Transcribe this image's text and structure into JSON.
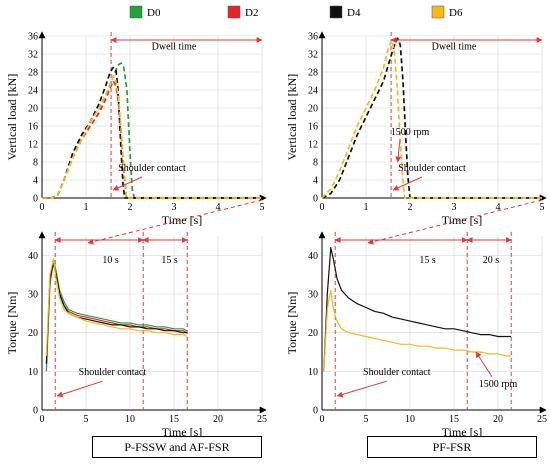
{
  "legend": [
    {
      "label": "D0",
      "color": "#1fa23a"
    },
    {
      "label": "D2",
      "color": "#e8222a"
    },
    {
      "label": "D4",
      "color": "#111111"
    },
    {
      "label": "D6",
      "color": "#f5b914"
    }
  ],
  "panel_titles": [
    "P-FSSW and AF-FSR",
    "PF-FSR"
  ],
  "chart_data": [
    {
      "type": "line",
      "position": "top-left",
      "xlabel": "Time [s]",
      "ylabel": "Vertical load [kN]",
      "xlim": [
        0,
        5
      ],
      "ylim": [
        0,
        36
      ],
      "xticks": [
        0,
        1,
        2,
        3,
        4,
        5
      ],
      "yticks": [
        0,
        4,
        8,
        12,
        16,
        20,
        24,
        28,
        32,
        36
      ],
      "grid": true,
      "series": [
        {
          "name": "D0",
          "color": "#1fa23a",
          "dash": true,
          "x": [
            0,
            0.2,
            0.35,
            0.5,
            0.7,
            0.9,
            1.1,
            1.3,
            1.5,
            1.62,
            1.72,
            1.8,
            1.86,
            1.93,
            2.0,
            2.05,
            2.1,
            5
          ],
          "y": [
            0,
            0,
            0.5,
            4,
            9,
            13,
            17,
            20,
            24,
            27,
            29.5,
            30,
            29,
            24,
            10,
            2,
            0,
            0
          ]
        },
        {
          "name": "D2",
          "color": "#e8222a",
          "dash": true,
          "x": [
            0,
            0.2,
            0.35,
            0.5,
            0.7,
            0.9,
            1.1,
            1.3,
            1.45,
            1.55,
            1.62,
            1.68,
            1.74,
            1.8,
            1.86,
            1.92,
            5
          ],
          "y": [
            0,
            0,
            0.5,
            4,
            9,
            13,
            16,
            19,
            22,
            24.5,
            26,
            25,
            21,
            14,
            6,
            0,
            0
          ]
        },
        {
          "name": "D4",
          "color": "#111111",
          "dash": true,
          "x": [
            0,
            0.2,
            0.35,
            0.5,
            0.7,
            0.9,
            1.1,
            1.3,
            1.45,
            1.55,
            1.62,
            1.68,
            1.72,
            1.76,
            1.8,
            1.84,
            1.88,
            5
          ],
          "y": [
            0,
            0,
            0.5,
            4,
            10,
            14,
            17,
            21,
            25,
            28,
            29,
            28.5,
            25,
            18,
            10,
            3,
            0,
            0
          ]
        },
        {
          "name": "D6",
          "color": "#f5b914",
          "dash": true,
          "x": [
            0,
            0.2,
            0.35,
            0.5,
            0.7,
            0.9,
            1.1,
            1.3,
            1.45,
            1.55,
            1.62,
            1.68,
            1.74,
            1.8,
            1.86,
            1.92,
            5
          ],
          "y": [
            0,
            0,
            0.5,
            4,
            9,
            13,
            17,
            20,
            23,
            25,
            27,
            26,
            22,
            15,
            7,
            0,
            0
          ]
        }
      ],
      "vlines": [
        1.57
      ],
      "annotations": [
        {
          "text": "Dwell time",
          "x": 3.0,
          "y": 33
        },
        {
          "text": "Shoulder contact",
          "x": 2.5,
          "y": 6
        }
      ]
    },
    {
      "type": "line",
      "position": "top-right",
      "xlabel": "Time [s]",
      "ylabel": "Vertical load [kN]",
      "xlim": [
        0,
        5
      ],
      "ylim": [
        0,
        36
      ],
      "xticks": [
        0,
        1,
        2,
        3,
        4,
        5
      ],
      "yticks": [
        0,
        4,
        8,
        12,
        16,
        20,
        24,
        28,
        32,
        36
      ],
      "grid": true,
      "series": [
        {
          "name": "D4",
          "color": "#111111",
          "dash": true,
          "x": [
            0,
            0.2,
            0.4,
            0.6,
            0.8,
            1.0,
            1.2,
            1.4,
            1.55,
            1.65,
            1.72,
            1.78,
            1.84,
            1.9,
            1.95,
            2.0,
            5
          ],
          "y": [
            0,
            1,
            4,
            9,
            14,
            18,
            22,
            26,
            31,
            34,
            35.5,
            34,
            26,
            14,
            5,
            0,
            0
          ]
        },
        {
          "name": "D6",
          "color": "#f5b914",
          "dash": true,
          "x": [
            0,
            0.2,
            0.4,
            0.6,
            0.8,
            1.0,
            1.2,
            1.4,
            1.5,
            1.58,
            1.64,
            1.7,
            1.76,
            1.82,
            1.88,
            5
          ],
          "y": [
            0,
            2,
            6,
            11,
            16,
            20,
            24,
            29,
            33,
            35,
            33,
            26,
            16,
            6,
            0,
            0
          ]
        }
      ],
      "vlines": [
        1.57
      ],
      "annotations": [
        {
          "text": "Dwell time",
          "x": 3.0,
          "y": 33
        },
        {
          "text": "1500 rpm",
          "x": 2.0,
          "y": 14
        },
        {
          "text": "Shoulder contact",
          "x": 2.5,
          "y": 6
        }
      ]
    },
    {
      "type": "line",
      "position": "bottom-left",
      "xlabel": "Time [s]",
      "ylabel": "Torque [Nm]",
      "xlim": [
        0,
        25
      ],
      "ylim": [
        0,
        45
      ],
      "xticks": [
        0,
        5,
        10,
        15,
        20,
        25
      ],
      "yticks": [
        0,
        10,
        20,
        30,
        40
      ],
      "grid": true,
      "series": [
        {
          "name": "D0",
          "color": "#1fa23a",
          "dash": false,
          "x": [
            0.5,
            0.9,
            1.3,
            1.6,
            2.0,
            2.5,
            3.0,
            4.0,
            5.0,
            6.0,
            7.0,
            8.0,
            9.0,
            10.0,
            11.0,
            12.0,
            13.0,
            14.0,
            15.0,
            16.0,
            16.5
          ],
          "y": [
            10,
            32,
            39,
            36,
            31,
            28,
            26,
            25,
            24.5,
            24,
            23.5,
            23,
            22.5,
            22.5,
            22,
            22,
            21.5,
            21.5,
            21,
            21,
            20.5
          ]
        },
        {
          "name": "D2",
          "color": "#e8222a",
          "dash": false,
          "x": [
            0.5,
            0.9,
            1.3,
            1.6,
            2.0,
            2.5,
            3.0,
            4.0,
            5.0,
            6.0,
            7.0,
            8.0,
            9.0,
            10.0,
            11.0,
            12.0,
            13.0,
            14.0,
            15.0,
            16.0,
            16.5
          ],
          "y": [
            12,
            33,
            38,
            35,
            30,
            27,
            25.5,
            24.5,
            24,
            23.5,
            23,
            22.5,
            22,
            22,
            21.5,
            21.5,
            21,
            21,
            20.5,
            20.5,
            20
          ]
        },
        {
          "name": "D4",
          "color": "#111111",
          "dash": false,
          "x": [
            0.5,
            0.9,
            1.3,
            1.6,
            2.0,
            2.5,
            3.0,
            4.0,
            5.0,
            6.0,
            7.0,
            8.0,
            9.0,
            10.0,
            11.0,
            12.0,
            13.0,
            14.0,
            15.0,
            16.0,
            16.5
          ],
          "y": [
            12,
            34,
            38,
            35,
            30,
            27,
            25,
            24,
            23.5,
            23,
            22.5,
            22,
            22,
            21.5,
            21.5,
            21,
            21,
            20.5,
            20.5,
            20,
            20
          ]
        },
        {
          "name": "D6",
          "color": "#f5b914",
          "dash": false,
          "x": [
            0.5,
            0.9,
            1.3,
            1.6,
            2.0,
            2.5,
            3.0,
            4.0,
            5.0,
            6.0,
            7.0,
            8.0,
            9.0,
            10.0,
            11.0,
            12.0,
            13.0,
            14.0,
            15.0,
            16.0,
            16.5
          ],
          "y": [
            14,
            35,
            39,
            34,
            29,
            26,
            25,
            24,
            23,
            22.5,
            22,
            21.5,
            21,
            21,
            20.5,
            20.5,
            20,
            20,
            19.5,
            19.5,
            19
          ]
        }
      ],
      "vlines": [
        1.5,
        11.5,
        16.5
      ],
      "annotations": [
        {
          "text": "10 s",
          "x": 7.8,
          "y": 38
        },
        {
          "text": "15 s",
          "x": 14.5,
          "y": 38
        },
        {
          "text": "Shoulder contact",
          "x": 8.0,
          "y": 9
        }
      ]
    },
    {
      "type": "line",
      "position": "bottom-right",
      "xlabel": "Time [s]",
      "ylabel": "Torque [Nm]",
      "xlim": [
        0,
        25
      ],
      "ylim": [
        0,
        45
      ],
      "xticks": [
        0,
        5,
        10,
        15,
        20,
        25
      ],
      "yticks": [
        0,
        10,
        20,
        30,
        40
      ],
      "grid": true,
      "series": [
        {
          "name": "D4",
          "color": "#111111",
          "dash": false,
          "x": [
            0.2,
            0.6,
            1.0,
            1.3,
            1.7,
            2.2,
            3.0,
            4.0,
            5.0,
            6.0,
            7.0,
            8.0,
            9.0,
            10.0,
            11.0,
            12.0,
            13.0,
            14.0,
            15.0,
            16.0,
            17.0,
            18.0,
            19.0,
            20.0,
            21.0,
            21.5
          ],
          "y": [
            10,
            30,
            42,
            39,
            34,
            31,
            29,
            27.5,
            26.5,
            25.5,
            25,
            24,
            23.5,
            23,
            22.5,
            22,
            21.5,
            21,
            21,
            20.5,
            20,
            19.5,
            19.5,
            19,
            19,
            19
          ]
        },
        {
          "name": "D6",
          "color": "#f5b914",
          "dash": false,
          "x": [
            0.2,
            0.6,
            1.0,
            1.3,
            1.7,
            2.2,
            3.0,
            4.0,
            5.0,
            6.0,
            7.0,
            8.0,
            9.0,
            10.0,
            11.0,
            12.0,
            13.0,
            14.0,
            15.0,
            16.0,
            17.0,
            18.0,
            19.0,
            20.0,
            21.0,
            21.5
          ],
          "y": [
            10,
            26,
            31,
            26,
            23,
            21,
            20,
            19.5,
            19,
            18.5,
            18,
            17.5,
            17,
            17,
            16.5,
            16.5,
            16,
            16,
            15.5,
            15.5,
            15,
            15,
            14.5,
            14.5,
            14,
            14
          ]
        }
      ],
      "vlines": [
        1.5,
        16.5,
        21.5
      ],
      "annotations": [
        {
          "text": "15 s",
          "x": 12.0,
          "y": 38
        },
        {
          "text": "20 s",
          "x": 19.2,
          "y": 38
        },
        {
          "text": "Shoulder contact",
          "x": 8.5,
          "y": 9
        },
        {
          "text": "1500 rpm",
          "x": 20.0,
          "y": 6
        }
      ]
    }
  ]
}
